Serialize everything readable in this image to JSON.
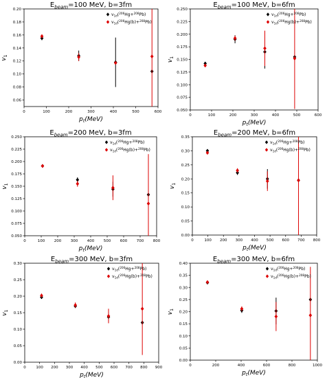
{
  "chart_data": [
    {
      "type": "scatter",
      "title_main": "E",
      "title_sub": "beam",
      "title_rest": "=100 MeV, b=3fm",
      "xlabel_main": "p",
      "xlabel_sub": "t",
      "xlabel_rest": "(MeV)",
      "ylabel_main": "v",
      "ylabel_sub": "1",
      "xlim": [
        0,
        600
      ],
      "ylim": [
        0.05,
        0.2
      ],
      "xticks": [
        0,
        100,
        200,
        300,
        400,
        500,
        600
      ],
      "xtick_labels": [
        "0",
        "100",
        "200",
        "300",
        "400",
        "500",
        "600"
      ],
      "yticks": [
        0.06,
        0.08,
        0.1,
        0.12,
        0.14,
        0.16,
        0.18,
        0.2
      ],
      "ytick_labels": [
        "0.06",
        "0.08",
        "0.10",
        "0.12",
        "0.14",
        "0.16",
        "0.18",
        "0.20"
      ],
      "legend_position": "top-right",
      "series": [
        {
          "name": "v1d(206Hg+208Pb)",
          "color": "#000000",
          "marker": "diamond",
          "x": [
            80,
            245,
            410,
            573
          ],
          "y": [
            0.155,
            0.128,
            0.118,
            0.104
          ],
          "err": [
            0.003,
            0.008,
            0.038,
            0.0
          ]
        },
        {
          "name": "v1d(206Hg(b)+208Pb)",
          "color": "#dd0000",
          "marker": "diamond",
          "x": [
            80,
            245,
            410,
            573
          ],
          "y": [
            0.158,
            0.126,
            0.117,
            0.127
          ],
          "err": [
            0.003,
            0.006,
            0.0,
            0.08
          ]
        }
      ]
    },
    {
      "type": "scatter",
      "title_main": "E",
      "title_sub": "beam",
      "title_rest": "=100 MeV, b=6fm",
      "xlabel_main": "p",
      "xlabel_sub": "t",
      "xlabel_rest": "(MeV)",
      "ylabel_main": "v",
      "ylabel_sub": "1",
      "xlim": [
        0,
        600
      ],
      "ylim": [
        0.05,
        0.25
      ],
      "xticks": [
        0,
        100,
        200,
        300,
        400,
        500,
        600
      ],
      "xtick_labels": [
        "0",
        "100",
        "200",
        "300",
        "400",
        "500",
        "600"
      ],
      "yticks": [
        0.05,
        0.075,
        0.1,
        0.125,
        0.15,
        0.175,
        0.2,
        0.225,
        0.25
      ],
      "ytick_labels": [
        "0.050",
        "0.075",
        "0.100",
        "0.125",
        "0.150",
        "0.175",
        "0.200",
        "0.225",
        "0.250"
      ],
      "legend_position": "top-right",
      "series": [
        {
          "name": "v1d(206Hg+208Pb)",
          "color": "#000000",
          "marker": "diamond",
          "x": [
            70,
            210,
            350,
            490
          ],
          "y": [
            0.142,
            0.19,
            0.165,
            0.155
          ],
          "err": [
            0.003,
            0.008,
            0.033,
            0.0
          ]
        },
        {
          "name": "v1d(206Hg(b)+208Pb)",
          "color": "#dd0000",
          "marker": "diamond",
          "x": [
            70,
            210,
            350,
            490
          ],
          "y": [
            0.138,
            0.192,
            0.172,
            0.152
          ],
          "err": [
            0.003,
            0.005,
            0.035,
            0.1
          ]
        }
      ]
    },
    {
      "type": "scatter",
      "title_main": "E",
      "title_sub": "beam",
      "title_rest": "=200 MeV, b=3fm",
      "xlabel_main": "p",
      "xlabel_sub": "t",
      "xlabel_rest": "(MeV)",
      "ylabel_main": "v",
      "ylabel_sub": "1",
      "xlim": [
        0,
        800
      ],
      "ylim": [
        0.05,
        0.25
      ],
      "xticks": [
        0,
        100,
        200,
        300,
        400,
        500,
        600,
        700,
        800
      ],
      "xtick_labels": [
        "0",
        "100",
        "200",
        "300",
        "400",
        "500",
        "600",
        "700",
        "800"
      ],
      "yticks": [
        0.05,
        0.075,
        0.1,
        0.125,
        0.15,
        0.175,
        0.2,
        0.225,
        0.25
      ],
      "ytick_labels": [
        "0.050",
        "0.075",
        "0.100",
        "0.125",
        "0.150",
        "0.175",
        "0.200",
        "0.225",
        "0.250"
      ],
      "legend_position": "top-right",
      "series": [
        {
          "name": "v1d(206Hg+208Pb)",
          "color": "#000000",
          "marker": "diamond",
          "x": [
            108,
            320,
            535,
            750
          ],
          "y": [
            0.191,
            0.163,
            0.144,
            0.133
          ],
          "err": [
            0.0,
            0.005,
            0.015,
            0.0
          ]
        },
        {
          "name": "v1d(206Hg(b)+208Pb)",
          "color": "#dd0000",
          "marker": "diamond",
          "x": [
            108,
            320,
            535,
            750
          ],
          "y": [
            0.191,
            0.155,
            0.147,
            0.115
          ],
          "err": [
            0.003,
            0.006,
            0.025,
            0.1
          ]
        }
      ]
    },
    {
      "type": "scatter",
      "title_main": "E",
      "title_sub": "beam",
      "title_rest": "=200 MeV, b=6fm",
      "xlabel_main": "p",
      "xlabel_sub": "t",
      "xlabel_rest": "(MeV)",
      "ylabel_main": "v",
      "ylabel_sub": "1",
      "xlim": [
        0,
        800
      ],
      "ylim": [
        0.0,
        0.35
      ],
      "xticks": [
        0,
        100,
        200,
        300,
        400,
        500,
        600,
        700,
        800
      ],
      "xtick_labels": [
        "0",
        "100",
        "200",
        "300",
        "400",
        "500",
        "600",
        "700",
        "800"
      ],
      "yticks": [
        0.0,
        0.05,
        0.1,
        0.15,
        0.2,
        0.25,
        0.3,
        0.35
      ],
      "ytick_labels": [
        "0.00",
        "0.05",
        "0.10",
        "0.15",
        "0.20",
        "0.25",
        "0.30",
        "0.35"
      ],
      "legend_position": "top-right",
      "series": [
        {
          "name": "v1d(206Hg+208Pb)",
          "color": "#000000",
          "marker": "diamond",
          "x": [
            97,
            290,
            483,
            683
          ],
          "y": [
            0.3,
            0.222,
            0.2,
            0.195
          ],
          "err": [
            0.003,
            0.008,
            0.035,
            0.0
          ]
        },
        {
          "name": "v1d(206Hg(b)+208Pb)",
          "color": "#dd0000",
          "marker": "diamond",
          "x": [
            97,
            290,
            483,
            683
          ],
          "y": [
            0.293,
            0.23,
            0.192,
            0.195
          ],
          "err": [
            0.005,
            0.008,
            0.035,
            0.25
          ]
        }
      ]
    },
    {
      "type": "scatter",
      "title_main": "E",
      "title_sub": "beam",
      "title_rest": "=300 MeV, b=3fm",
      "xlabel_main": "p",
      "xlabel_sub": "t",
      "xlabel_rest": "(MeV)",
      "ylabel_main": "v",
      "ylabel_sub": "1",
      "xlim": [
        0,
        900
      ],
      "ylim": [
        0.0,
        0.3
      ],
      "xticks": [
        0,
        100,
        200,
        300,
        400,
        500,
        600,
        700,
        800,
        900
      ],
      "xtick_labels": [
        "0",
        "100",
        "200",
        "300",
        "400",
        "500",
        "600",
        "700",
        "800",
        "900"
      ],
      "yticks": [
        0.0,
        0.05,
        0.1,
        0.15,
        0.2,
        0.25,
        0.3
      ],
      "ytick_labels": [
        "0.00",
        "0.05",
        "0.10",
        "0.15",
        "0.20",
        "0.25",
        "0.30"
      ],
      "legend_position": "top-right",
      "series": [
        {
          "name": "v1d(206Hg+208Pb)",
          "color": "#000000",
          "marker": "diamond",
          "x": [
            113,
            340,
            563,
            790
          ],
          "y": [
            0.197,
            0.17,
            0.137,
            0.12
          ],
          "err": [
            0.004,
            0.006,
            0.015,
            0.0
          ]
        },
        {
          "name": "v1d(206Hg(b)+208Pb)",
          "color": "#dd0000",
          "marker": "diamond",
          "x": [
            113,
            340,
            563,
            790
          ],
          "y": [
            0.202,
            0.173,
            0.14,
            0.162
          ],
          "err": [
            0.006,
            0.008,
            0.022,
            0.14
          ]
        }
      ]
    },
    {
      "type": "scatter",
      "title_main": "E",
      "title_sub": "beam",
      "title_rest": "=300 MeV, b=6fm",
      "xlabel_main": "p",
      "xlabel_sub": "t",
      "xlabel_rest": "(MeV)",
      "ylabel_main": "v",
      "ylabel_sub": "1",
      "xlim": [
        0,
        1000
      ],
      "ylim": [
        0.0,
        0.4
      ],
      "xticks": [
        0,
        200,
        400,
        600,
        800,
        1000
      ],
      "xtick_labels": [
        "0",
        "200",
        "400",
        "600",
        "800",
        "1000"
      ],
      "yticks": [
        0.0,
        0.05,
        0.1,
        0.15,
        0.2,
        0.25,
        0.3,
        0.35,
        0.4
      ],
      "ytick_labels": [
        "0.00",
        "0.05",
        "0.10",
        "0.15",
        "0.20",
        "0.25",
        "0.30",
        "0.35",
        "0.40"
      ],
      "legend_position": "top-right",
      "series": [
        {
          "name": "v1d(206Hg+208Pb)",
          "color": "#000000",
          "marker": "diamond",
          "x": [
            135,
            405,
            675,
            945
          ],
          "y": [
            0.32,
            0.205,
            0.203,
            0.25
          ],
          "err": [
            0.003,
            0.01,
            0.055,
            0.0
          ]
        },
        {
          "name": "v1d(206Hg(b)+208Pb)",
          "color": "#dd0000",
          "marker": "diamond",
          "x": [
            135,
            405,
            675,
            945
          ],
          "y": [
            0.322,
            0.212,
            0.18,
            0.185
          ],
          "err": [
            0.005,
            0.01,
            0.06,
            0.2
          ]
        }
      ]
    }
  ]
}
